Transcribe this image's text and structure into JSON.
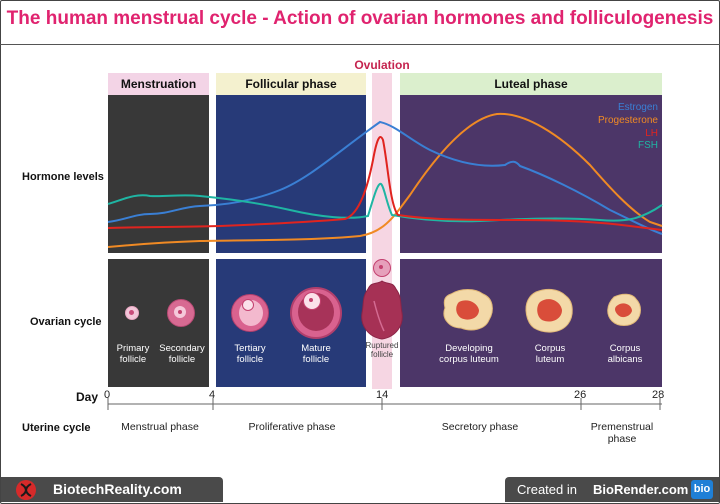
{
  "title": "The human menstrual cycle - Action of ovarian hormones and folliculogenesis",
  "ovulation_label": "Ovulation",
  "phases": {
    "menstruation": "Menstruation",
    "follicular": "Follicular phase",
    "luteal": "Luteal phase"
  },
  "row_labels": {
    "hormone": "Hormone levels",
    "ovarian": "Ovarian cycle",
    "day": "Day",
    "uterine": "Uterine cycle"
  },
  "legend": {
    "estrogen": {
      "label": "Estrogen",
      "color": "#3a7fd4"
    },
    "progesterone": {
      "label": "Progesterone",
      "color": "#f08a24"
    },
    "lh": {
      "label": "LH",
      "color": "#e0241f"
    },
    "fsh": {
      "label": "FSH",
      "color": "#1fb5a3"
    }
  },
  "follicles": {
    "primary": "Primary follicle",
    "secondary": "Secondary follicle",
    "tertiary": "Tertiary follicle",
    "mature": "Mature follicle",
    "ruptured": "Ruptured follicle",
    "developing_cl": "Developing corpus luteum",
    "corpus_luteum": "Corpus luteum",
    "corpus_albicans": "Corpus albicans"
  },
  "days": [
    "0",
    "4",
    "14",
    "26",
    "28"
  ],
  "uterine": {
    "menstrual": "Menstrual phase",
    "proliferative": "Proliferative phase",
    "secretory": "Secretory phase",
    "premenstrual": "Premenstrual phase"
  },
  "footer": {
    "left": "BiotechReality.com",
    "right_prefix": "Created in ",
    "right_brand": "BioRender.com",
    "badge": "bio"
  }
}
